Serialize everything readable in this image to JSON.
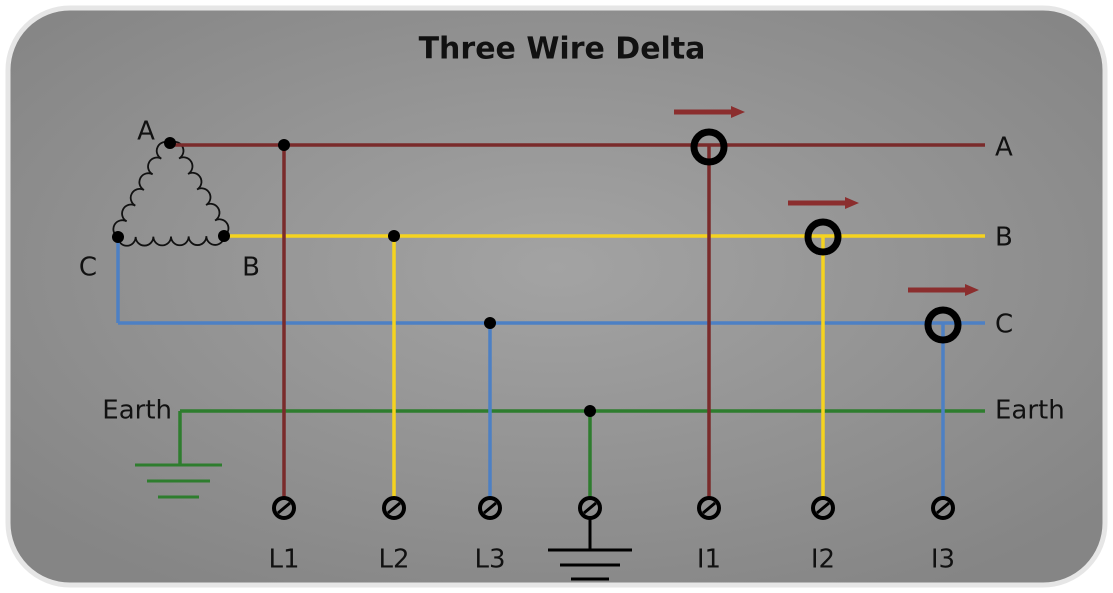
{
  "title": "Three Wire Delta",
  "source": {
    "vertices": [
      "A",
      "B",
      "C"
    ]
  },
  "lines": [
    {
      "label": "A"
    },
    {
      "label": "B"
    },
    {
      "label": "C"
    },
    {
      "label": "Earth"
    }
  ],
  "earth_label": "Earth",
  "terminals": [
    "L1",
    "L2",
    "L3",
    "I1",
    "I2",
    "I3"
  ]
}
